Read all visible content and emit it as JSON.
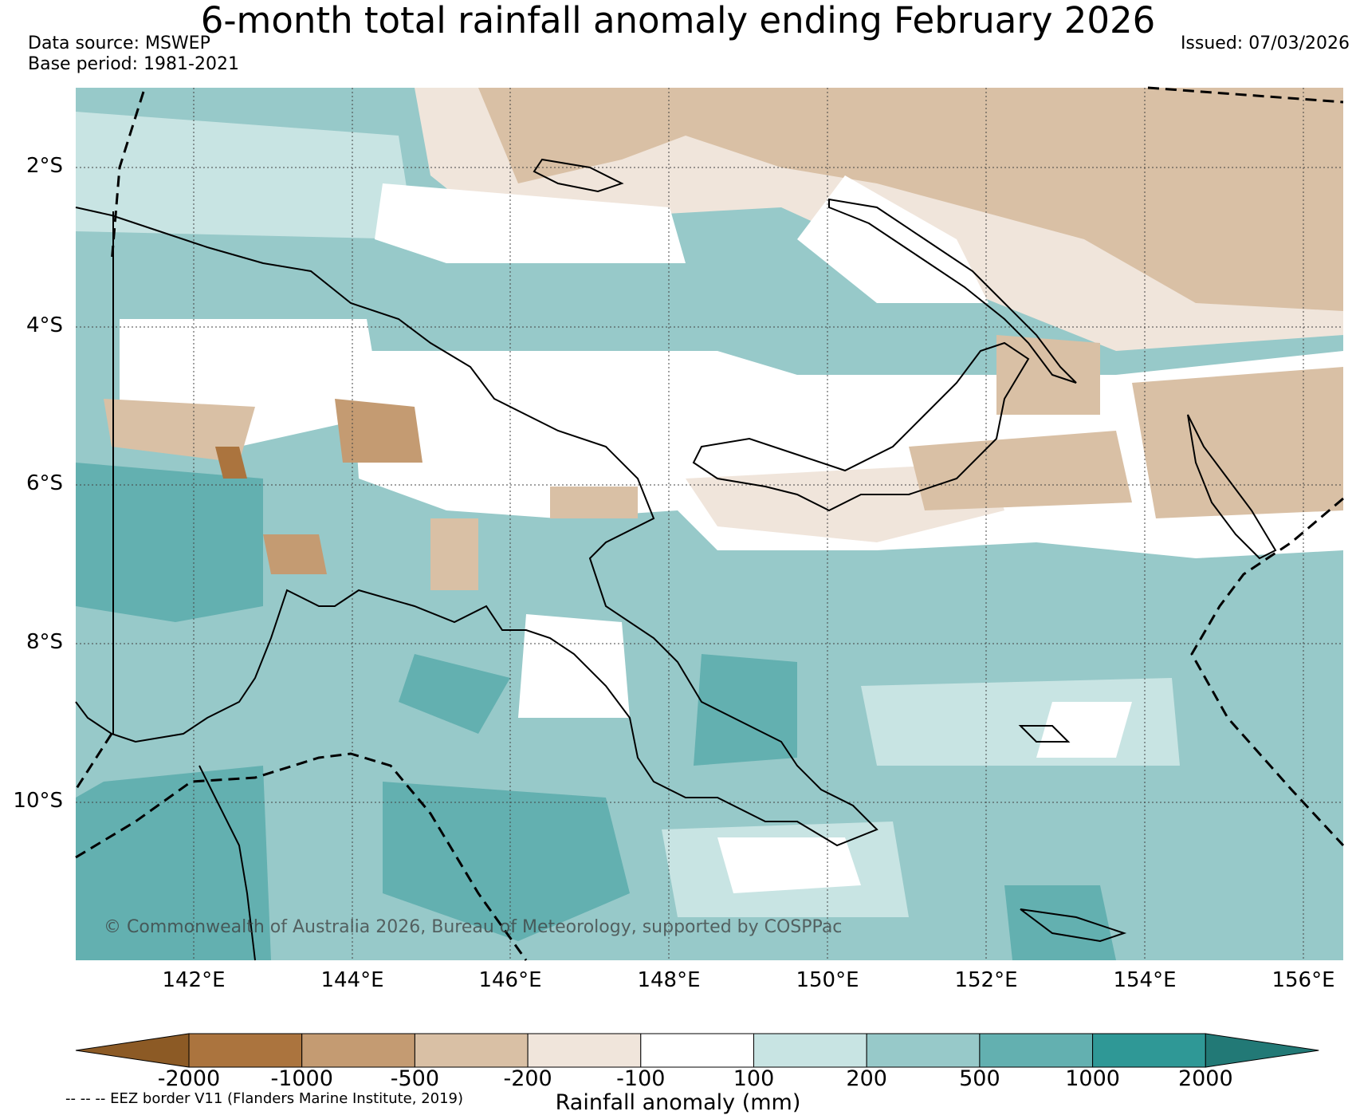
{
  "header": {
    "title": "6-month total rainfall anomaly ending February 2026",
    "data_source": "Data source: MSWEP",
    "base_period": "Base period: 1981-2021",
    "issued": "Issued: 07/03/2026"
  },
  "map": {
    "lat_ticks": [
      "2°S",
      "4°S",
      "6°S",
      "8°S",
      "10°S"
    ],
    "lon_ticks": [
      "142°E",
      "144°E",
      "146°E",
      "148°E",
      "150°E",
      "152°E",
      "154°E",
      "156°E"
    ],
    "copyright": "© Commonwealth of Australia 2026, Bureau of Meteorology, supported by COSPPac"
  },
  "legend": {
    "levels": [
      "-2000",
      "-1000",
      "-500",
      "-200",
      "-100",
      "100",
      "200",
      "500",
      "1000",
      "2000"
    ],
    "colors": [
      "#8c5a25",
      "#ab743e",
      "#c49b72",
      "#d9c0a5",
      "#f0e5db",
      "#ffffff",
      "#c8e4e3",
      "#97c9c9",
      "#63b0b0",
      "#2f9896",
      "#227976"
    ],
    "title": "Rainfall anomaly (mm)",
    "eez_note": "-- -- -- EEZ border V11 (Flanders Marine Institute, 2019)"
  }
}
